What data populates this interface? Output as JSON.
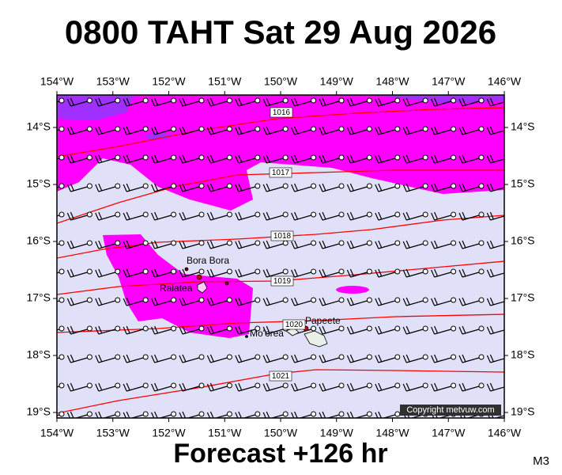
{
  "title": "0800 TAHT Sat 29 Aug 2026",
  "footer": "Forecast +126 hr",
  "corner_label": "M3",
  "copyright": "Copyright metvuw.com",
  "map": {
    "lon_labels": [
      "154°W",
      "153°W",
      "152°W",
      "151°W",
      "150°W",
      "149°W",
      "148°W",
      "147°W",
      "146°W"
    ],
    "lat_labels": [
      "14°S",
      "15°S",
      "16°S",
      "17°S",
      "18°S",
      "19°S"
    ],
    "isobars": [
      "1016",
      "1017",
      "1018",
      "1019",
      "1020",
      "1021"
    ],
    "places": [
      "Bora Bora",
      "Raiatea",
      "Mo'orea",
      "Papeete"
    ]
  }
}
